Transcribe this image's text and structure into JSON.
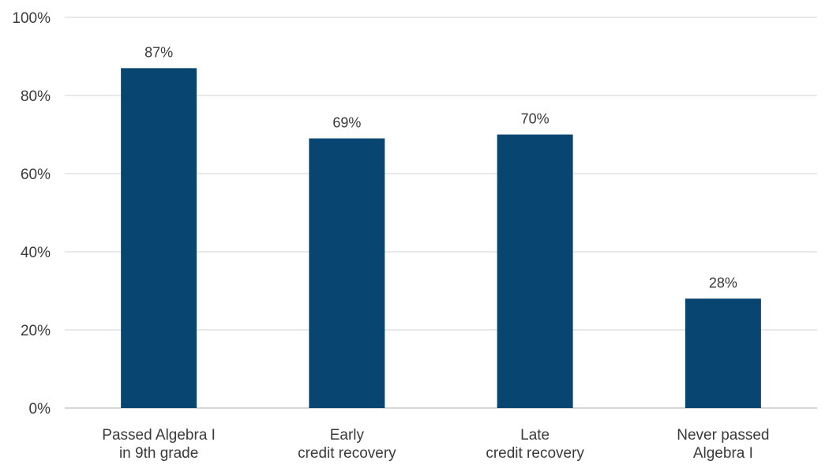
{
  "chart_data": {
    "type": "bar",
    "title": "",
    "xlabel": "",
    "ylabel": "",
    "categories": [
      [
        "Passed Algebra I",
        "in 9th grade"
      ],
      [
        "Early",
        "credit recovery"
      ],
      [
        "Late",
        "credit recovery"
      ],
      [
        "Never passed",
        "Algebra I"
      ]
    ],
    "values": [
      87,
      69,
      70,
      28
    ],
    "value_labels": [
      "87%",
      "69%",
      "70%",
      "28%"
    ],
    "ylim": [
      0,
      100
    ],
    "y_ticks": [
      0,
      20,
      40,
      60,
      80,
      100
    ],
    "y_tick_labels": [
      "0%",
      "20%",
      "40%",
      "60%",
      "80%",
      "100%"
    ],
    "grid": true,
    "legend": "none",
    "bar_color": "#084671",
    "grid_color": "#d3d3d3"
  }
}
